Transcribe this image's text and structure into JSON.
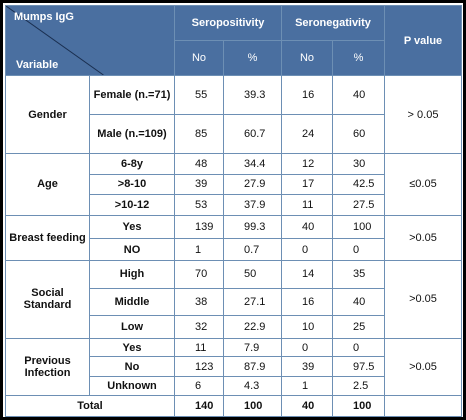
{
  "table": {
    "corner_top": "Mumps IgG",
    "corner_bottom": "Variable",
    "groups": [
      "Seropositivity",
      "Seronegativity"
    ],
    "p_header": "P value",
    "sub_headers": [
      "No",
      "%",
      "No",
      "%"
    ],
    "gender": {
      "label": "Gender",
      "p": "> 0.05",
      "female": {
        "label": "Female (n.=71)",
        "values": [
          "55",
          "39.3",
          "16",
          "40"
        ]
      },
      "male": {
        "label": "Male (n.=109)",
        "values": [
          "85",
          "60.7",
          "24",
          "60"
        ]
      }
    },
    "age": {
      "label": "Age",
      "p": "≤0.05",
      "rows": [
        {
          "label": "6-8y",
          "values": [
            "48",
            "34.4",
            "12",
            "30"
          ]
        },
        {
          "label": ">8-10",
          "values": [
            "39",
            "27.9",
            "17",
            "42.5"
          ]
        },
        {
          "label": ">10-12",
          "values": [
            "53",
            "37.9",
            "11",
            "27.5"
          ]
        }
      ]
    },
    "breast": {
      "label": "Breast feeding",
      "p": ">0.05",
      "rows": [
        {
          "label": "Yes",
          "values": [
            "139",
            "99.3",
            "40",
            "100"
          ]
        },
        {
          "label": "NO",
          "values": [
            "1",
            "0.7",
            "0",
            "0"
          ]
        }
      ]
    },
    "social": {
      "label": "Social Standard",
      "p": ">0.05",
      "rows": [
        {
          "label": "High",
          "values": [
            "70",
            "50",
            "14",
            "35"
          ]
        },
        {
          "label": "Middle",
          "values": [
            "38",
            "27.1",
            "16",
            "40"
          ]
        },
        {
          "label": "Low",
          "values": [
            "32",
            "22.9",
            "10",
            "25"
          ]
        }
      ]
    },
    "previous": {
      "label": "Previous Infection",
      "p": ">0.05",
      "rows": [
        {
          "label": "Yes",
          "values": [
            "11",
            "7.9",
            "0",
            "0"
          ]
        },
        {
          "label": "No",
          "values": [
            "123",
            "87.9",
            "39",
            "97.5"
          ]
        },
        {
          "label": "Unknown",
          "values": [
            "6",
            "4.3",
            "1",
            "2.5"
          ]
        }
      ]
    },
    "total": {
      "label": "Total",
      "values": [
        "140",
        "100",
        "40",
        "100"
      ]
    }
  }
}
